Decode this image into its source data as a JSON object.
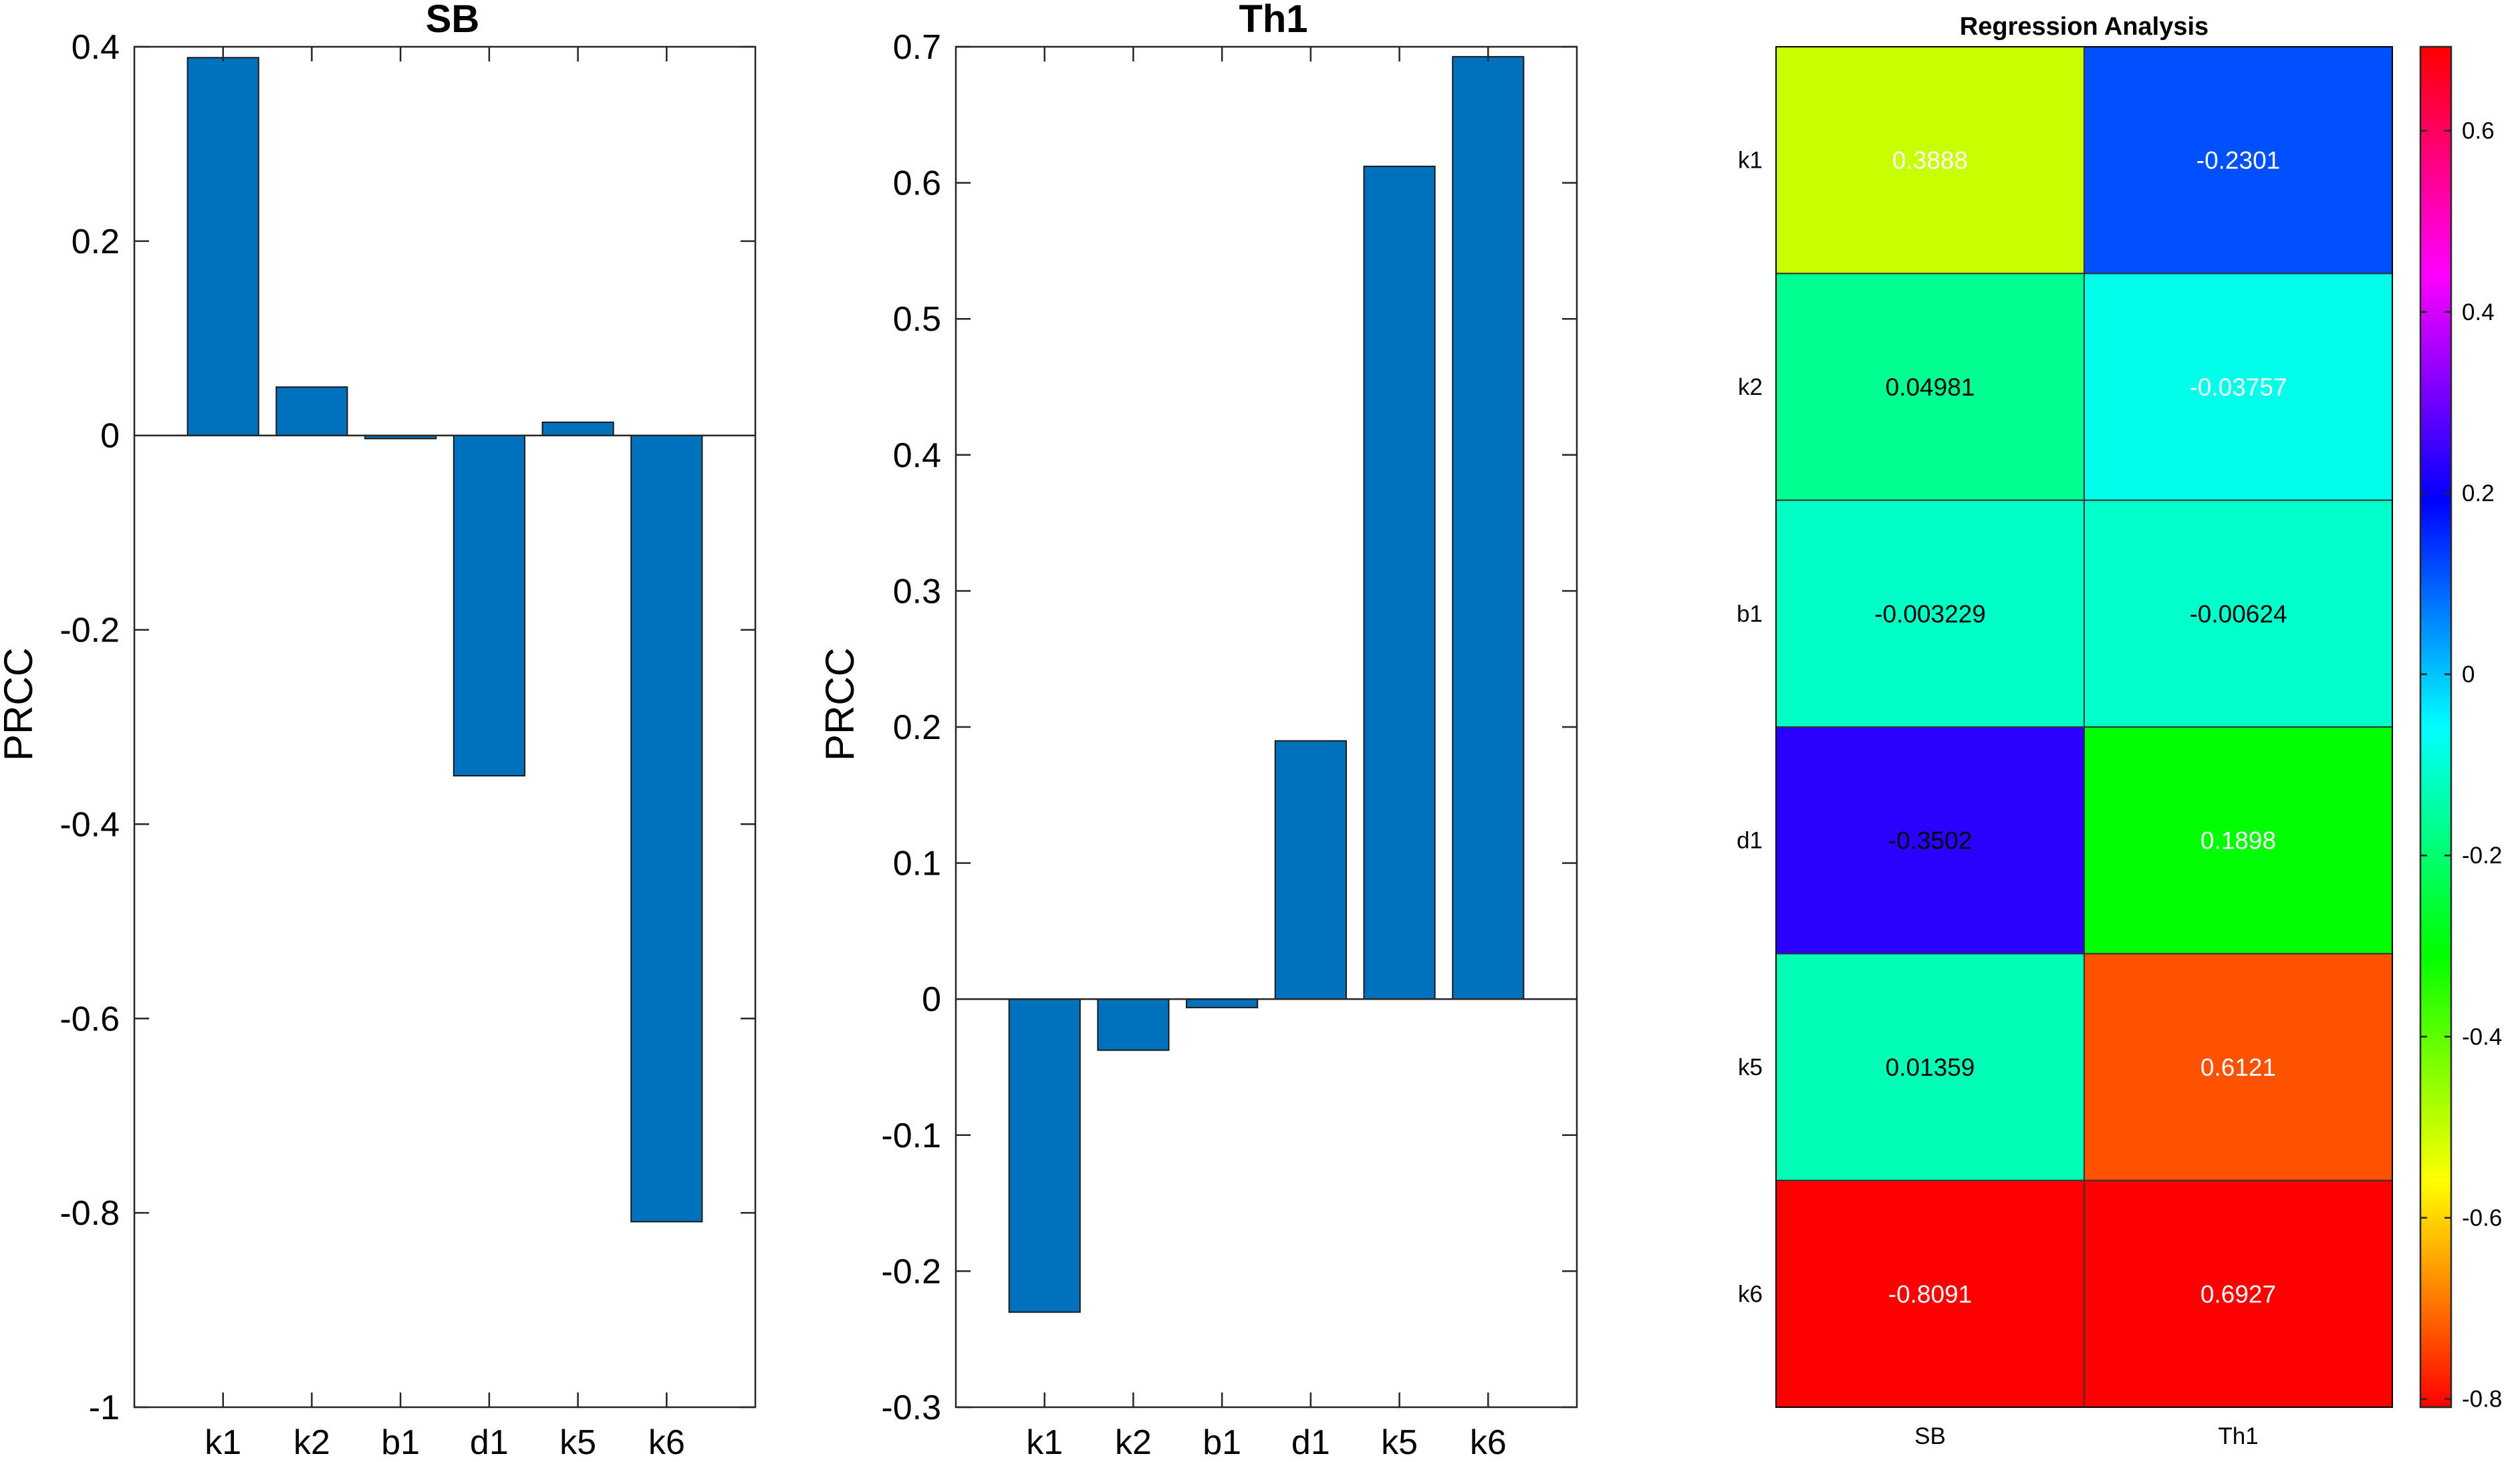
{
  "chart_data": [
    {
      "type": "bar",
      "title": "SB",
      "xlabel": "",
      "ylabel": "PRCC",
      "categories": [
        "k1",
        "k2",
        "b1",
        "d1",
        "k5",
        "k6"
      ],
      "values": [
        0.3888,
        0.04981,
        -0.003229,
        -0.3502,
        0.01359,
        -0.8091
      ],
      "ylim": [
        -1,
        0.4
      ],
      "yticks": [
        -1,
        -0.8,
        -0.6,
        -0.4,
        -0.2,
        0,
        0.2,
        0.4
      ],
      "ytick_labels": [
        "-1",
        "-0.8",
        "-0.6",
        "-0.4",
        "-0.2",
        "0",
        "0.2",
        "0.4"
      ],
      "bar_color": "#0072BD",
      "grid": false
    },
    {
      "type": "bar",
      "title": "Th1",
      "xlabel": "",
      "ylabel": "PRCC",
      "categories": [
        "k1",
        "k2",
        "b1",
        "d1",
        "k5",
        "k6"
      ],
      "values": [
        -0.2301,
        -0.03757,
        -0.00624,
        0.1898,
        0.6121,
        0.6927
      ],
      "ylim": [
        -0.3,
        0.7
      ],
      "yticks": [
        -0.3,
        -0.2,
        -0.1,
        0,
        0.1,
        0.2,
        0.3,
        0.4,
        0.5,
        0.6,
        0.7
      ],
      "ytick_labels": [
        "-0.3",
        "-0.2",
        "-0.1",
        "0",
        "0.1",
        "0.2",
        "0.3",
        "0.4",
        "0.5",
        "0.6",
        "0.7"
      ],
      "bar_color": "#0072BD",
      "grid": false
    },
    {
      "type": "heatmap",
      "title": "Regression Analysis",
      "x_categories": [
        "SB",
        "Th1"
      ],
      "y_categories": [
        "k1",
        "k2",
        "b1",
        "d1",
        "k5",
        "k6"
      ],
      "values": [
        [
          0.3888,
          -0.2301
        ],
        [
          0.04981,
          -0.03757
        ],
        [
          -0.003229,
          -0.00624
        ],
        [
          -0.3502,
          0.1898
        ],
        [
          0.01359,
          0.6121
        ],
        [
          -0.8091,
          0.6927
        ]
      ],
      "cell_labels": [
        [
          "0.3888",
          "-0.2301"
        ],
        [
          "0.04981",
          "-0.03757"
        ],
        [
          "-0.003229",
          "-0.00624"
        ],
        [
          "-0.3502",
          "0.1898"
        ],
        [
          "0.01359",
          "0.6121"
        ],
        [
          "-0.8091",
          "0.6927"
        ]
      ],
      "colormap": "hsv",
      "color_limits": [
        -0.8091,
        0.6927
      ],
      "colorbar": {
        "placement": "right",
        "ticks": [
          0.6,
          0.4,
          0.2,
          0,
          -0.2,
          -0.4,
          -0.6,
          -0.8
        ],
        "tick_labels": [
          "0.6",
          "0.4",
          "0.2",
          "0",
          "-0.2",
          "-0.4",
          "-0.6",
          "-0.8"
        ]
      },
      "dark_text_cells": [
        [
          1,
          0
        ],
        [
          2,
          0
        ],
        [
          2,
          1
        ],
        [
          3,
          0
        ],
        [
          4,
          0
        ]
      ]
    }
  ]
}
